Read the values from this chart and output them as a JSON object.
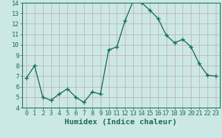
{
  "x": [
    0,
    1,
    2,
    3,
    4,
    5,
    6,
    7,
    8,
    9,
    10,
    11,
    12,
    13,
    14,
    15,
    16,
    17,
    18,
    19,
    20,
    21,
    22,
    23
  ],
  "y": [
    6.8,
    8.0,
    5.0,
    4.7,
    5.3,
    5.8,
    5.0,
    4.5,
    5.5,
    5.3,
    9.5,
    9.8,
    12.3,
    14.2,
    14.0,
    13.3,
    12.5,
    10.9,
    10.2,
    10.5,
    9.8,
    8.2,
    7.1,
    7.0
  ],
  "line_color": "#1a6b5e",
  "marker": "+",
  "marker_size": 4,
  "bg_color": "#cce8e4",
  "grid_color_major": "#c0b8c0",
  "grid_color_minor": "#ddd8dd",
  "xlabel": "Humidex (Indice chaleur)",
  "ylim": [
    4,
    14
  ],
  "xlim": [
    -0.5,
    23.5
  ],
  "yticks": [
    4,
    5,
    6,
    7,
    8,
    9,
    10,
    11,
    12,
    13,
    14
  ],
  "xticks": [
    0,
    1,
    2,
    3,
    4,
    5,
    6,
    7,
    8,
    9,
    10,
    11,
    12,
    13,
    14,
    15,
    16,
    17,
    18,
    19,
    20,
    21,
    22,
    23
  ],
  "tick_label_size": 6.5,
  "xlabel_size": 8,
  "linewidth": 1.0
}
